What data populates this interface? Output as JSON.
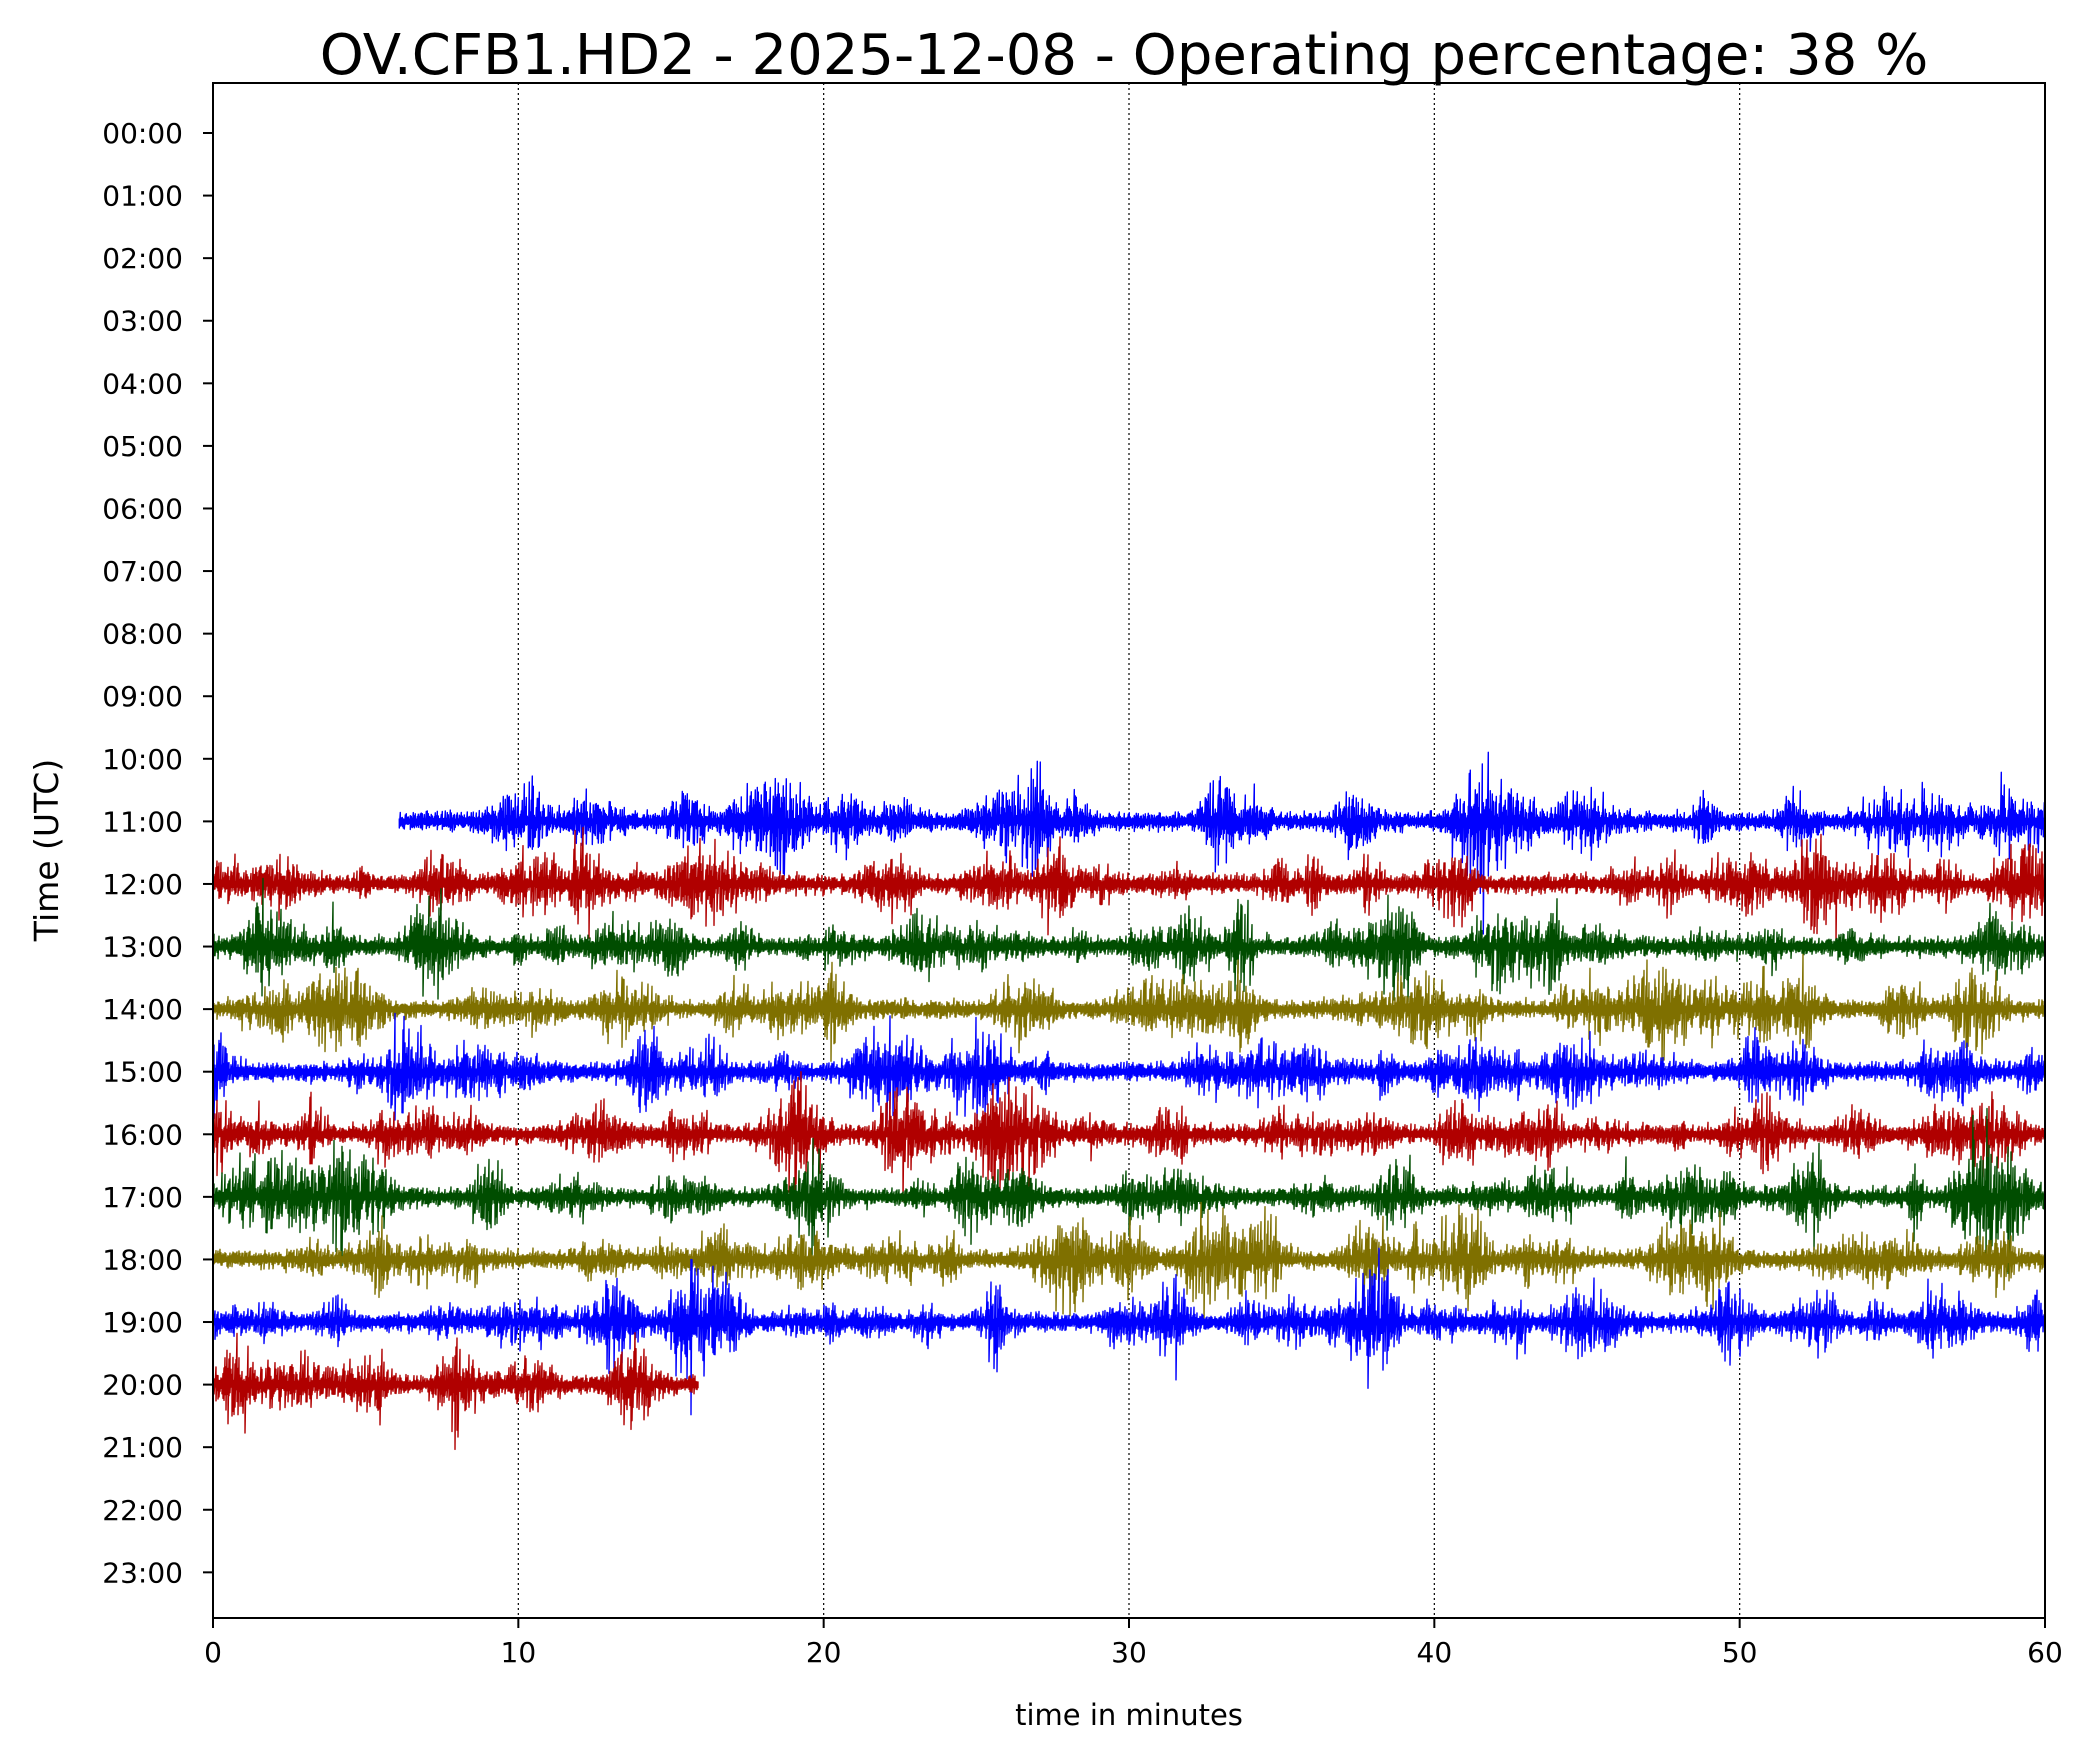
{
  "chart_data": {
    "type": "line",
    "title": "OV.CFB1.HD2 - 2025-12-08 - Operating percentage: 38 %",
    "xlabel": "time in minutes",
    "ylabel": "Time (UTC)",
    "xlim": [
      0,
      60
    ],
    "x_ticks": [
      0,
      10,
      20,
      30,
      40,
      50,
      60
    ],
    "y_ticks": [
      "00:00",
      "01:00",
      "02:00",
      "03:00",
      "04:00",
      "05:00",
      "06:00",
      "07:00",
      "08:00",
      "09:00",
      "10:00",
      "11:00",
      "12:00",
      "13:00",
      "14:00",
      "15:00",
      "16:00",
      "17:00",
      "18:00",
      "19:00",
      "20:00",
      "21:00",
      "22:00",
      "23:00"
    ],
    "grid": "vertical dotted lines at major x ticks",
    "series": [
      {
        "hour": "11:00",
        "start_min": 6.1,
        "end_min": 60,
        "color": "#0000ff"
      },
      {
        "hour": "12:00",
        "start_min": 0,
        "end_min": 60,
        "color": "#b00000"
      },
      {
        "hour": "13:00",
        "start_min": 0,
        "end_min": 60,
        "color": "#004d00"
      },
      {
        "hour": "14:00",
        "start_min": 0,
        "end_min": 60,
        "color": "#7f7000"
      },
      {
        "hour": "15:00",
        "start_min": 0,
        "end_min": 60,
        "color": "#0000ff"
      },
      {
        "hour": "16:00",
        "start_min": 0,
        "end_min": 60,
        "color": "#b00000"
      },
      {
        "hour": "17:00",
        "start_min": 0,
        "end_min": 60,
        "color": "#004d00"
      },
      {
        "hour": "18:00",
        "start_min": 0,
        "end_min": 60,
        "color": "#7f7000"
      },
      {
        "hour": "19:00",
        "start_min": 0,
        "end_min": 60,
        "color": "#0000ff"
      },
      {
        "hour": "20:00",
        "start_min": 0,
        "end_min": 15.9,
        "color": "#b00000"
      }
    ]
  }
}
